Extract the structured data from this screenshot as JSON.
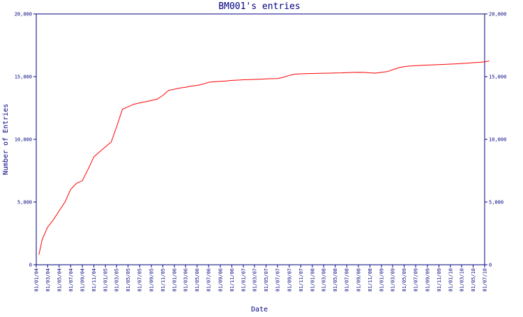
{
  "chart_data": {
    "type": "line",
    "title": "BM001's entries",
    "xlabel": "Date",
    "ylabel": "Number of Entries",
    "ylim": [
      0,
      20000
    ],
    "yticks": [
      0,
      5000,
      10000,
      15000,
      20000
    ],
    "ytick_labels": [
      "0",
      "5,000",
      "10,000",
      "15,000",
      "20,000"
    ],
    "xticks": [
      "01/01/04",
      "01/03/04",
      "01/05/04",
      "01/07/04",
      "01/09/04",
      "01/11/04",
      "01/01/05",
      "01/03/05",
      "01/05/05",
      "01/07/05",
      "01/09/05",
      "01/11/05",
      "01/01/06",
      "01/03/06",
      "01/05/06",
      "01/07/06",
      "01/09/06",
      "01/11/06",
      "01/01/07",
      "01/03/07",
      "01/05/07",
      "01/07/07",
      "01/09/07",
      "01/11/07",
      "01/01/08",
      "01/03/08",
      "01/05/08",
      "01/07/08",
      "01/09/08",
      "01/11/08",
      "01/01/09",
      "01/03/09",
      "01/05/09",
      "01/07/09",
      "01/09/09",
      "01/11/09",
      "01/01/10",
      "01/03/10",
      "01/05/10",
      "01/07/10"
    ],
    "right_axis": true,
    "grid": false,
    "colors": {
      "axis": "#000080",
      "line": "#ff0000",
      "background": "#ffffff"
    },
    "series": [
      {
        "x": [
          "2004-01-15",
          "2004-02-01",
          "2004-03-01",
          "2004-04-01",
          "2004-05-01",
          "2004-06-01",
          "2004-07-01",
          "2004-08-01",
          "2004-09-01",
          "2004-10-01",
          "2004-11-01",
          "2004-12-01",
          "2005-01-01",
          "2005-02-01",
          "2005-03-01",
          "2005-04-01",
          "2005-05-01",
          "2005-06-01",
          "2005-07-01",
          "2005-08-01",
          "2005-09-01",
          "2005-10-01",
          "2005-11-01",
          "2005-12-01",
          "2006-01-01",
          "2006-02-01",
          "2006-03-01",
          "2006-04-01",
          "2006-05-01",
          "2006-06-01",
          "2006-07-01",
          "2006-08-01",
          "2006-09-01",
          "2006-10-01",
          "2006-11-01",
          "2006-12-01",
          "2007-01-01",
          "2007-02-01",
          "2007-03-01",
          "2007-04-01",
          "2007-05-01",
          "2007-06-01",
          "2007-07-01",
          "2007-08-01",
          "2007-09-01",
          "2007-10-01",
          "2007-11-01",
          "2007-12-01",
          "2008-01-01",
          "2008-02-01",
          "2008-03-01",
          "2008-04-01",
          "2008-05-01",
          "2008-06-01",
          "2008-07-01",
          "2008-08-01",
          "2008-09-01",
          "2008-10-01",
          "2008-11-01",
          "2008-12-01",
          "2009-01-01",
          "2009-02-01",
          "2009-03-01",
          "2009-04-01",
          "2009-05-01",
          "2009-06-01",
          "2009-07-01",
          "2009-08-01",
          "2009-09-01",
          "2009-10-01",
          "2009-11-01",
          "2009-12-01",
          "2010-01-01",
          "2010-02-01",
          "2010-03-01",
          "2010-04-01",
          "2010-05-01",
          "2010-06-01",
          "2010-07-01",
          "2010-07-25"
        ],
        "values": [
          800,
          2000,
          3000,
          3600,
          4300,
          5000,
          6000,
          6500,
          6700,
          7600,
          8600,
          9000,
          9400,
          9800,
          11000,
          12400,
          12600,
          12800,
          12900,
          13000,
          13100,
          13200,
          13500,
          13900,
          14000,
          14100,
          14150,
          14250,
          14300,
          14400,
          14550,
          14600,
          14620,
          14650,
          14700,
          14720,
          14750,
          14760,
          14780,
          14800,
          14820,
          14840,
          14850,
          14950,
          15100,
          15200,
          15220,
          15240,
          15250,
          15260,
          15270,
          15280,
          15290,
          15300,
          15320,
          15340,
          15350,
          15340,
          15300,
          15280,
          15350,
          15400,
          15550,
          15700,
          15800,
          15850,
          15880,
          15900,
          15920,
          15940,
          15960,
          15980,
          16000,
          16020,
          16050,
          16080,
          16110,
          16140,
          16180,
          16250
        ]
      }
    ]
  }
}
